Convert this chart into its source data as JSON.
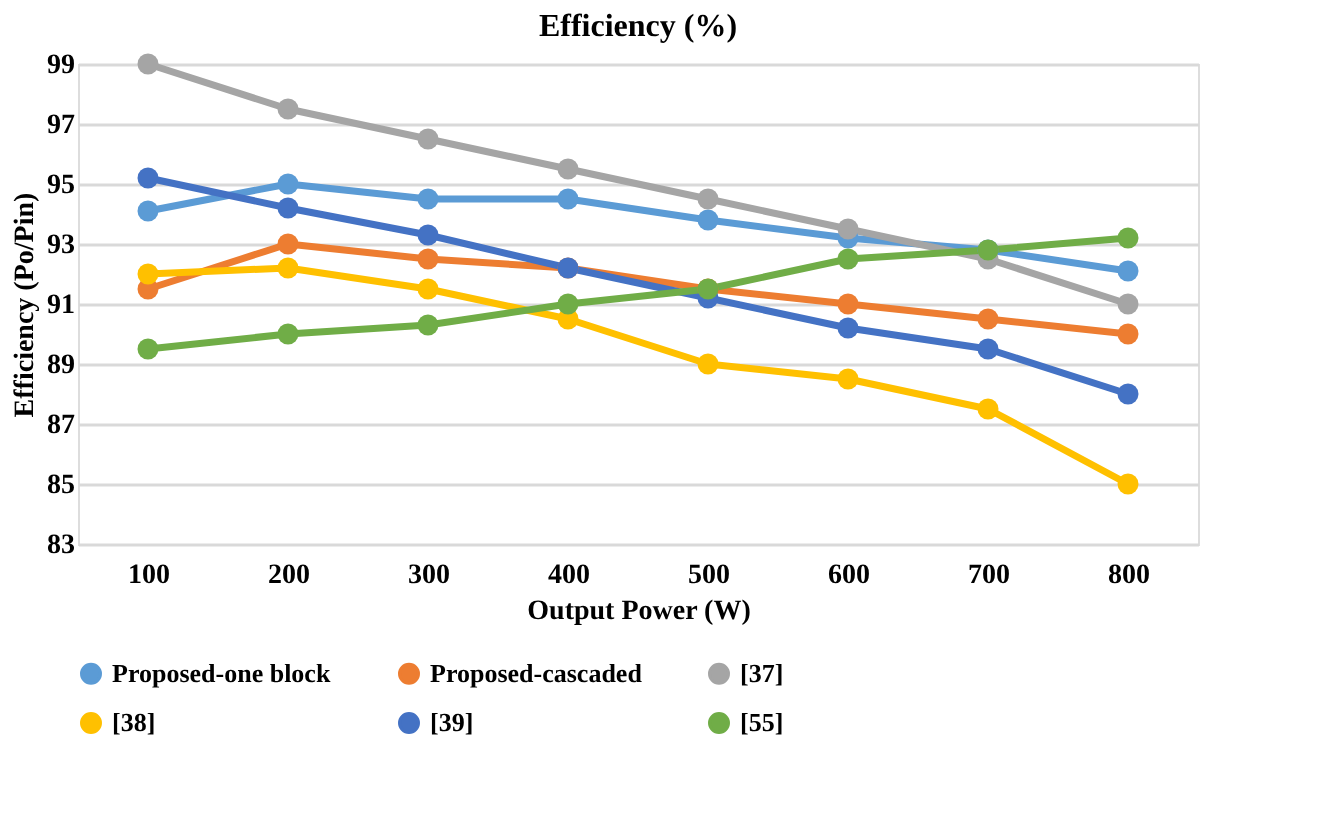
{
  "chart_data": {
    "type": "line",
    "title": "Efficiency (%)",
    "xlabel": "Output Power (W)",
    "ylabel": "Efficiency (Po/Pin)",
    "categories": [
      "100",
      "200",
      "300",
      "400",
      "500",
      "600",
      "700",
      "800"
    ],
    "ylim": [
      83,
      99
    ],
    "yticks": [
      83,
      85,
      87,
      89,
      91,
      93,
      95,
      97,
      99
    ],
    "grid": "y",
    "legend": "bottom",
    "marker": "circle",
    "line_style": "solid",
    "series": [
      {
        "name": "Proposed-one block",
        "color": "#5b9bd5",
        "values": [
          94.1,
          95,
          94.5,
          94.5,
          93.8,
          93.2,
          92.8,
          92.1
        ]
      },
      {
        "name": "Proposed-cascaded",
        "color": "#ed7d31",
        "values": [
          91.5,
          93,
          92.5,
          92.2,
          91.5,
          91,
          90.5,
          90
        ]
      },
      {
        "name": "[37]",
        "color": "#a5a5a5",
        "values": [
          99,
          97.5,
          96.5,
          95.5,
          94.5,
          93.5,
          92.5,
          91
        ]
      },
      {
        "name": "[38]",
        "color": "#ffc000",
        "values": [
          92,
          92.2,
          91.5,
          90.5,
          89,
          88.5,
          87.5,
          85
        ]
      },
      {
        "name": "[39]",
        "color": "#4472c4",
        "values": [
          95.2,
          94.2,
          93.3,
          92.2,
          91.2,
          90.2,
          89.5,
          88
        ]
      },
      {
        "name": "[55]",
        "color": "#70ad47",
        "values": [
          89.5,
          90,
          90.3,
          91,
          91.5,
          92.5,
          92.8,
          93.2
        ]
      }
    ]
  }
}
